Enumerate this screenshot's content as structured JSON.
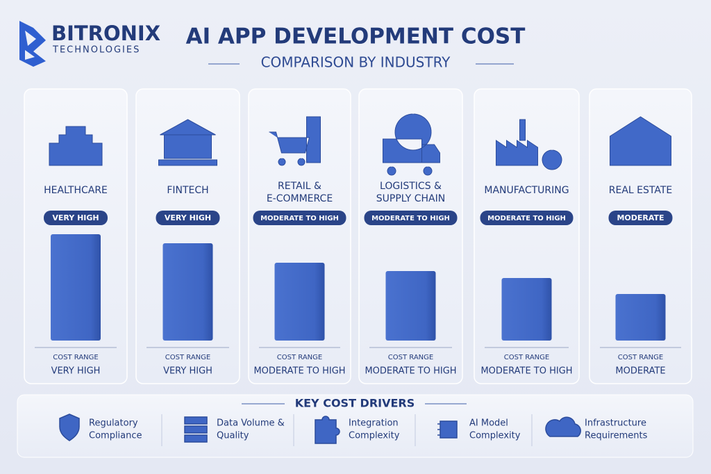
{
  "brand": {
    "name": "BITRONIX",
    "tagline": "TECHNOLOGIES"
  },
  "header": {
    "title": "AI APP DEVELOPMENT COST",
    "subtitle": "COMPARISON BY INDUSTRY"
  },
  "industries": [
    {
      "name": [
        "HEALTHCARE"
      ],
      "badge": "VERY HIGH",
      "cost_label": "COST RANGE",
      "cost": "VERY HIGH"
    },
    {
      "name": [
        "FINTECH"
      ],
      "badge": "VERY HIGH",
      "cost_label": "COST RANGE",
      "cost": "VERY HIGH"
    },
    {
      "name": [
        "RETAIL &",
        "E-COMMERCE"
      ],
      "badge": "MODERATE TO HIGH",
      "cost_label": "COST RANGE",
      "cost": "MODERATE TO HIGH"
    },
    {
      "name": [
        "LOGISTICS &",
        "SUPPLY CHAIN"
      ],
      "badge": "MODERATE TO HIGH",
      "cost_label": "COST RANGE",
      "cost": "MODERATE TO HIGH"
    },
    {
      "name": [
        "MANUFACTURING"
      ],
      "badge": "MODERATE TO HIGH",
      "cost_label": "COST RANGE",
      "cost": "MODERATE TO HIGH"
    },
    {
      "name": [
        "REAL ESTATE"
      ],
      "badge": "MODERATE",
      "cost_label": "COST RANGE",
      "cost": "MODERATE"
    }
  ],
  "drivers": {
    "title": "KEY COST DRIVERS",
    "items": [
      [
        "Regulatory",
        "Compliance"
      ],
      [
        "Data Volume &",
        "Quality"
      ],
      [
        "Integration",
        "Complexity"
      ],
      [
        "AI Model",
        "Complexity"
      ],
      [
        "Infrastructure",
        "Requirements"
      ]
    ]
  }
}
